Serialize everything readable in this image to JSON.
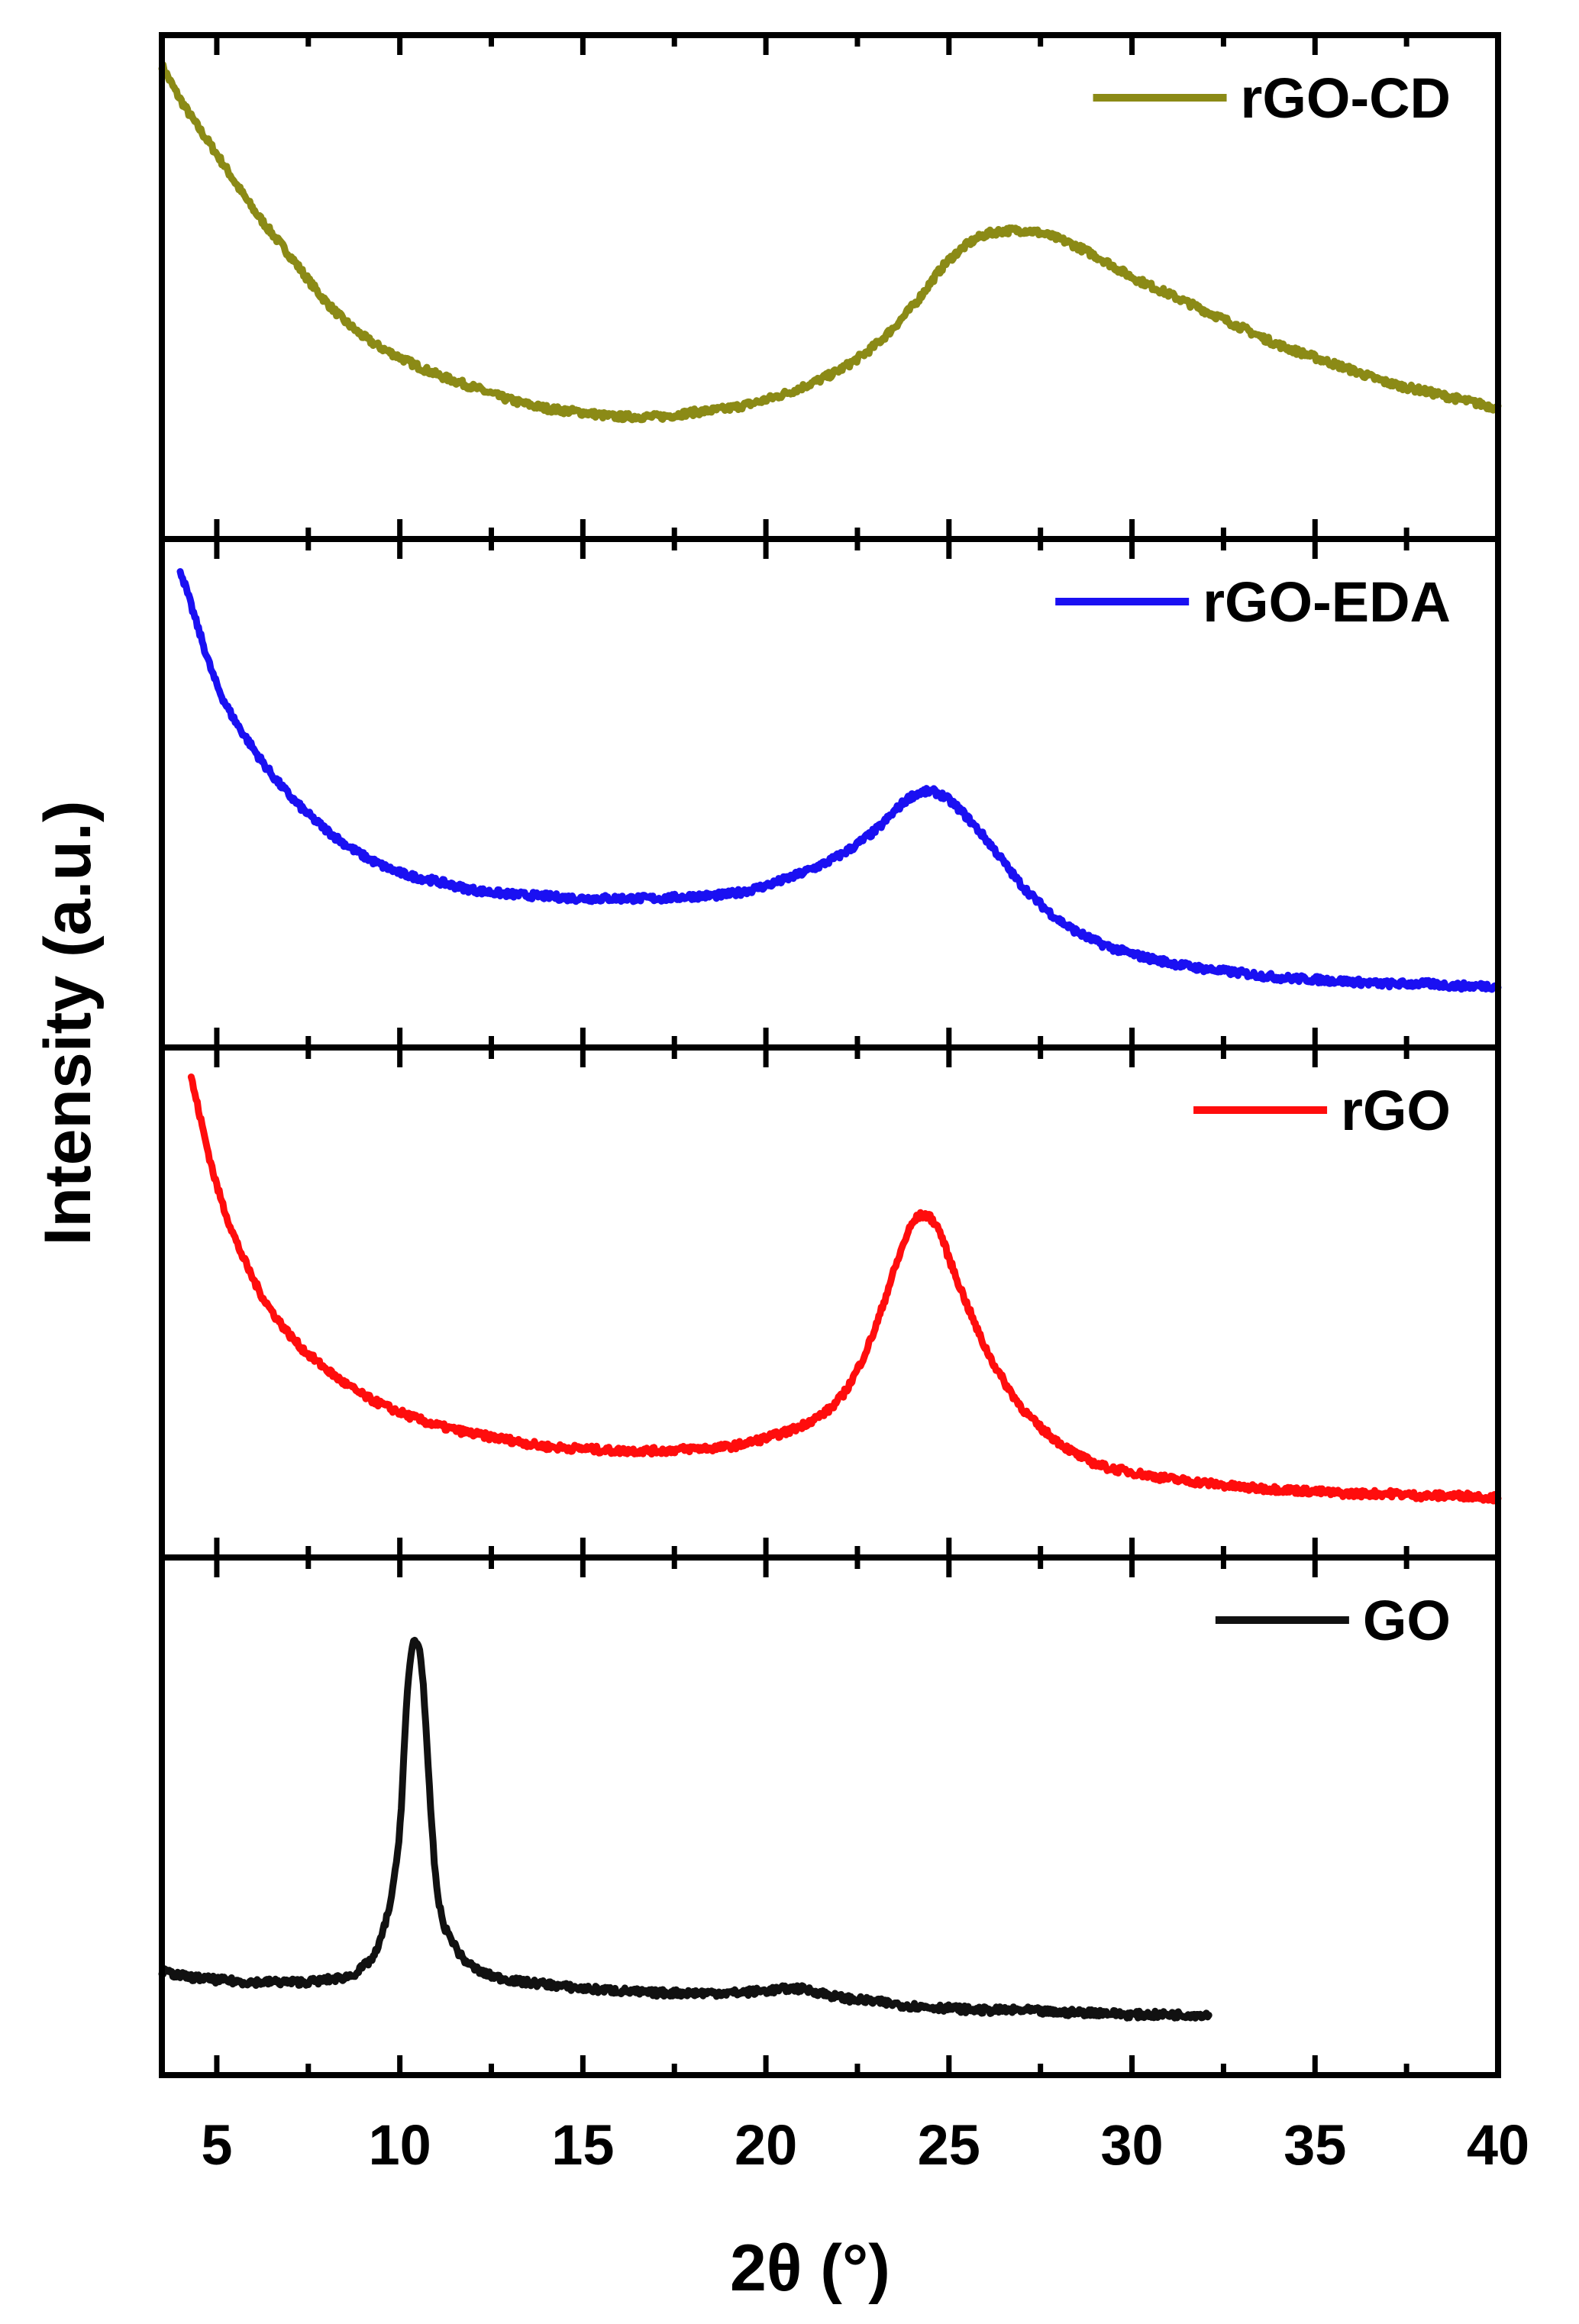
{
  "chart_data": {
    "type": "line",
    "layout": "stacked-panels",
    "xlabel": "2θ (°)",
    "ylabel": "Intensity (a.u.)",
    "xlim": [
      3.5,
      40
    ],
    "xticks": [
      5,
      10,
      15,
      20,
      25,
      30,
      35,
      40
    ],
    "grid": false,
    "panels": [
      {
        "name": "rGO-CD",
        "color": "#8b8a16",
        "legend_position": "top-right",
        "ylim": [
          0,
          100
        ],
        "x": [
          3.5,
          4,
          5,
          6,
          7,
          8,
          9,
          10,
          11,
          12,
          13,
          14,
          15,
          16,
          17,
          18,
          19,
          20,
          21,
          22,
          23,
          24,
          25,
          26,
          27,
          28,
          29,
          30,
          31,
          32,
          33,
          34,
          35,
          36,
          37,
          38,
          39,
          40
        ],
        "values": [
          100,
          92,
          79,
          66,
          55,
          44,
          36,
          31,
          27,
          24,
          21,
          19,
          18,
          17,
          17,
          18,
          19,
          21,
          24,
          28,
          34,
          43,
          54,
          60,
          61,
          59,
          55,
          50,
          46,
          42,
          38,
          34,
          31,
          28,
          25,
          23,
          21,
          19
        ]
      },
      {
        "name": "rGO-EDA",
        "color": "#1a10f2",
        "legend_position": "top-right",
        "ylim": [
          0,
          100
        ],
        "x": [
          4,
          4.5,
          5,
          6,
          7,
          8,
          9,
          10,
          11,
          12,
          13,
          14,
          15,
          16,
          17,
          18,
          19,
          20,
          21,
          22,
          23,
          24,
          24.5,
          25,
          26,
          27,
          28,
          29,
          30,
          31,
          32,
          33,
          34,
          35,
          36,
          37,
          38,
          39,
          40
        ],
        "values": [
          100,
          86,
          73,
          58,
          47,
          39,
          33,
          29,
          27,
          25,
          24,
          23.5,
          23,
          23,
          23,
          23.5,
          24,
          26,
          29,
          33,
          39,
          47,
          48,
          46,
          37,
          26,
          18,
          13,
          10,
          8,
          6.5,
          5.5,
          4.5,
          4,
          3.5,
          3,
          3,
          2.5,
          2.5
        ]
      },
      {
        "name": "rGO",
        "color": "#ff0d0d",
        "legend_position": "top-right",
        "ylim": [
          0,
          100
        ],
        "x": [
          4.3,
          5,
          6,
          7,
          8,
          9,
          10,
          11,
          12,
          13,
          14,
          15,
          16,
          17,
          18,
          19,
          20,
          21,
          22,
          22.5,
          23,
          23.5,
          24,
          24.3,
          24.7,
          25,
          25.5,
          26,
          27,
          28,
          29,
          30,
          31,
          32,
          33,
          34,
          35,
          36,
          37,
          38,
          39,
          40
        ],
        "values": [
          100,
          75,
          53,
          40,
          32,
          26,
          22,
          19,
          17,
          15.5,
          14,
          13.5,
          13,
          13,
          13.5,
          14,
          16,
          19,
          25,
          32,
          42,
          55,
          66,
          68,
          65,
          58,
          47,
          37,
          23,
          15,
          10,
          8,
          6.5,
          5.5,
          4.5,
          4,
          3.5,
          3,
          3,
          2.5,
          2.5,
          2
        ]
      },
      {
        "name": "GO",
        "color": "#111111",
        "legend_position": "top-right",
        "ylim": [
          0,
          100
        ],
        "x": [
          3.5,
          4,
          5,
          6,
          7,
          8,
          9,
          9.5,
          10,
          10.2,
          10.4,
          10.6,
          10.8,
          11,
          11.5,
          12,
          13,
          14,
          15,
          16,
          17,
          18,
          19,
          20,
          20.8,
          21.5,
          22,
          23,
          24,
          25,
          26,
          27,
          28,
          29,
          30,
          31,
          32.1
        ],
        "values": [
          12,
          11,
          10,
          9.5,
          9.5,
          10,
          13,
          20,
          45,
          75,
          88,
          82,
          55,
          32,
          18,
          13,
          10,
          9,
          8,
          7.5,
          7,
          7,
          7,
          7.5,
          8,
          7,
          6,
          5,
          4,
          3.5,
          3,
          3,
          2.5,
          2.5,
          2,
          2,
          2
        ]
      }
    ]
  }
}
